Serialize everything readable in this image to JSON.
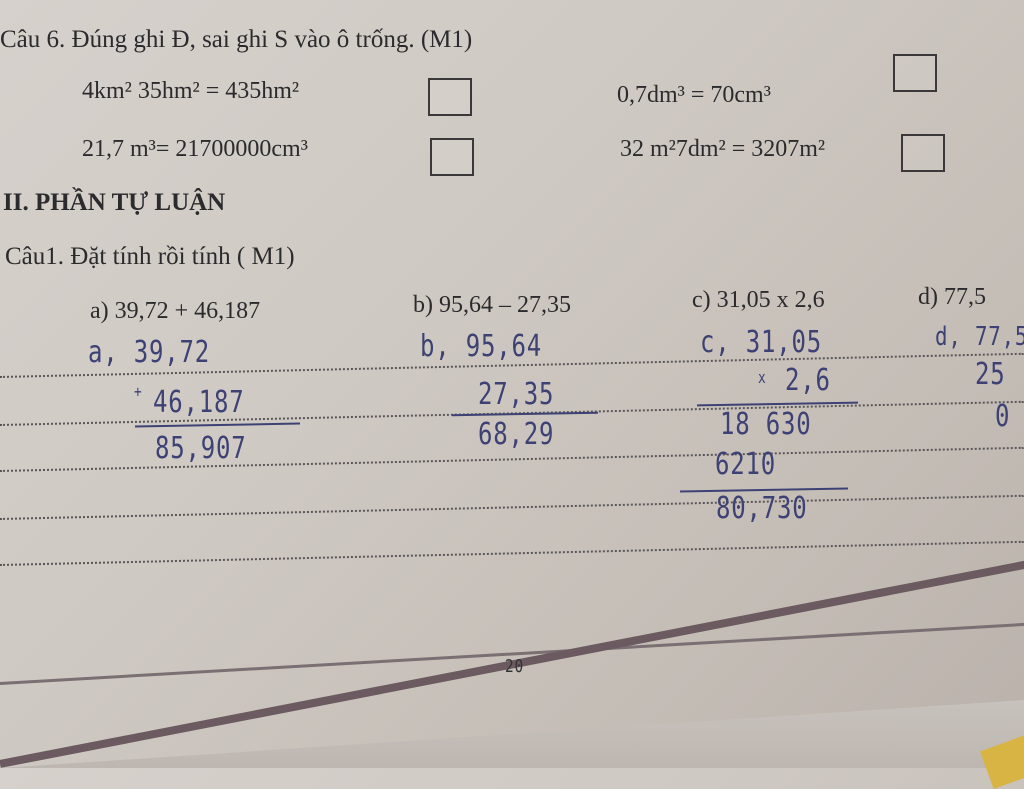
{
  "question6": {
    "title": "Câu 6. Đúng ghi Đ, sai ghi S vào ô trống. (M1)",
    "items": [
      {
        "expr": "4km² 35hm² = 435hm²",
        "answer": ""
      },
      {
        "expr": "0,7dm³ = 70cm³",
        "answer": ""
      },
      {
        "expr": "21,7 m³= 21700000cm³",
        "answer": ""
      },
      {
        "expr": "32 m²7dm² = 3207m²",
        "answer": ""
      }
    ]
  },
  "section2": {
    "title": "II. PHẦN TỰ LUẬN"
  },
  "question1": {
    "title": "Câu1. Đặt tính rồi tính ( M1)",
    "parts": [
      {
        "label": "a) 39,72 + 46,187"
      },
      {
        "label": "b) 95,64 – 27,35"
      },
      {
        "label": "c) 31,05 x 2,6"
      },
      {
        "label": "d) 77,5"
      }
    ]
  },
  "handwriting": {
    "a": {
      "line1": "a, 39,72",
      "op": "+",
      "line2": "46,187",
      "result": "85,907"
    },
    "b": {
      "line1": "b, 95,64",
      "op": "-",
      "line2": "27,35",
      "result": "68,29"
    },
    "c": {
      "line1": "c, 31,05",
      "op": "x",
      "line2": "2,6",
      "partial1": "18 630",
      "partial2": "6210",
      "result": "80,730"
    },
    "d": {
      "line1": "d, 77,5",
      "line2": "25",
      "line3": "0"
    }
  },
  "footer": {
    "page_mark": "20"
  }
}
